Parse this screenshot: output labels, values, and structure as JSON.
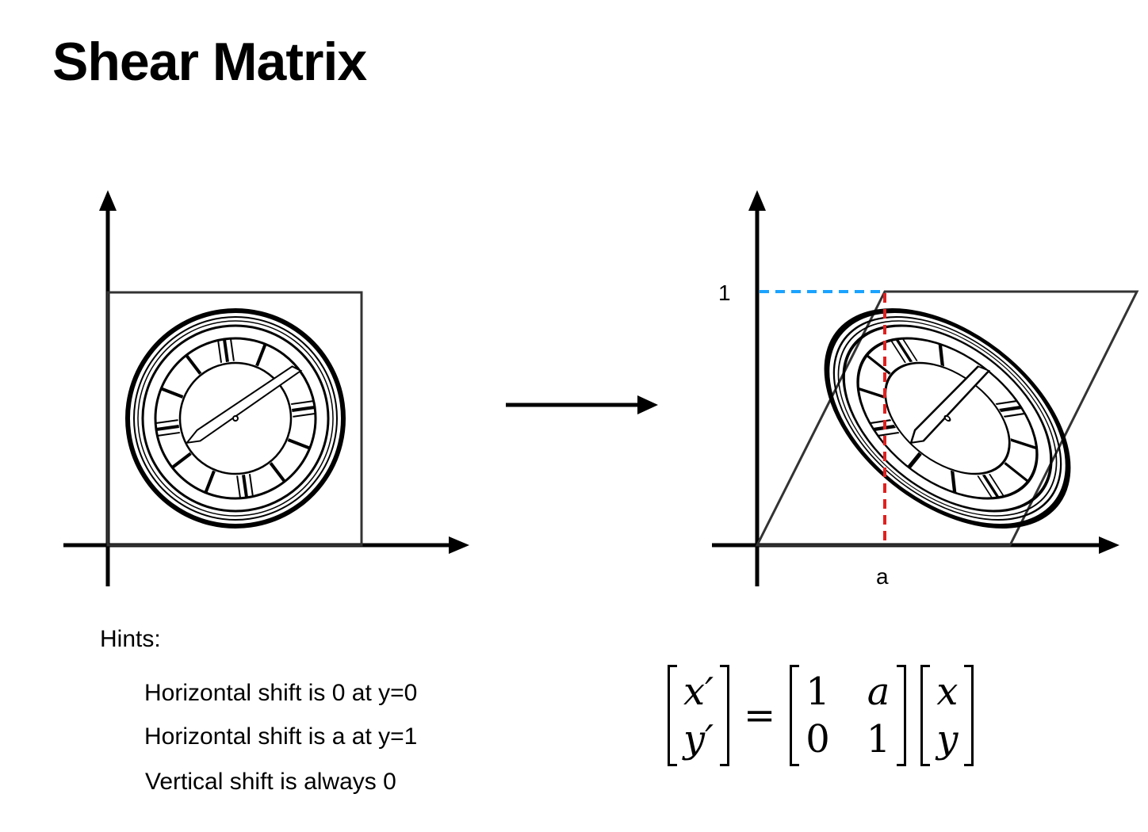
{
  "page": {
    "title": "Shear Matrix"
  },
  "diagram": {
    "left_panel": {
      "description_icon": "clock-icon"
    },
    "right_panel": {
      "y_tick_label": "1",
      "x_tick_label": "a",
      "dashed_colors": {
        "horizontal": "#1aa3ff",
        "vertical": "#e02020"
      }
    },
    "arrow_icon": "right-arrow-icon"
  },
  "hints": {
    "title": "Hints:",
    "items": [
      "Horizontal shift is 0 at y=0",
      "Horizontal shift is a at y=1",
      "Vertical shift is always 0"
    ]
  },
  "equation": {
    "lhs": [
      "x′",
      "y′"
    ],
    "equals": "=",
    "matrix": [
      [
        "1",
        "a"
      ],
      [
        "0",
        "1"
      ]
    ],
    "rhs": [
      "x",
      "y"
    ]
  }
}
